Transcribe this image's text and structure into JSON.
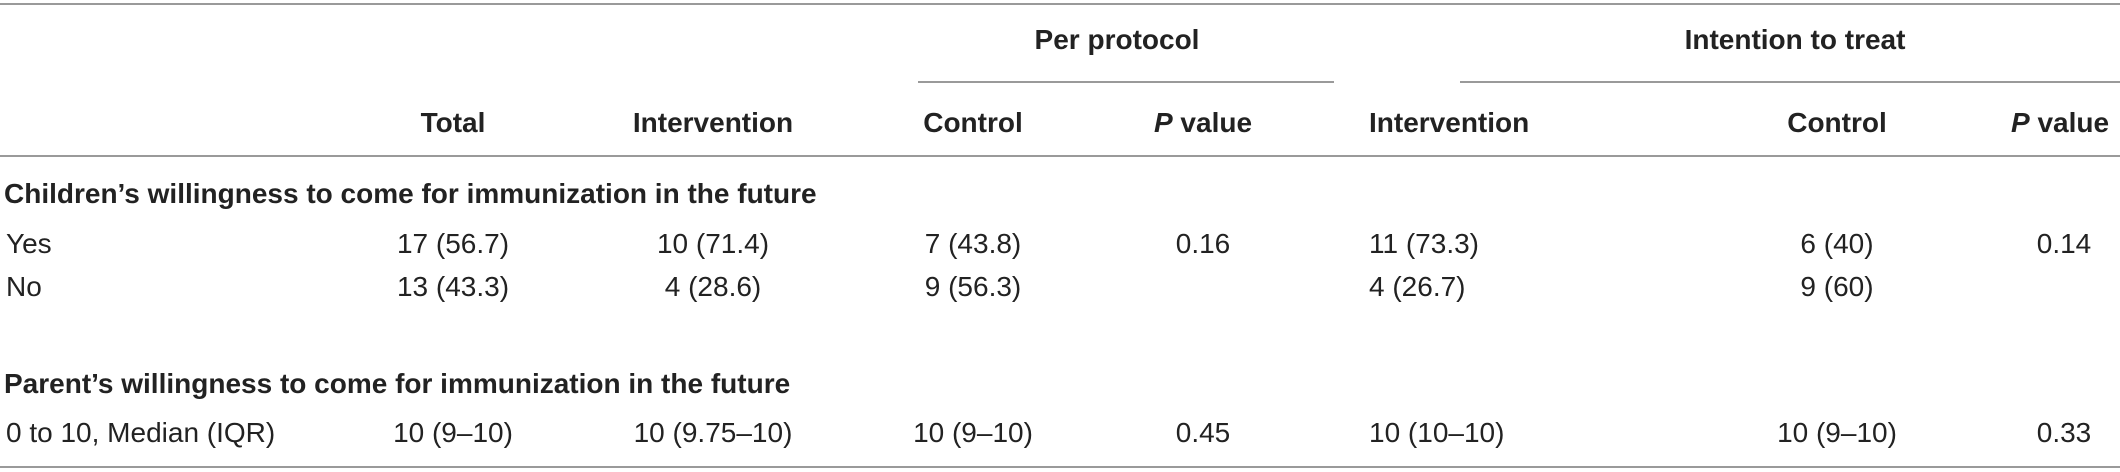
{
  "groups": {
    "per_protocol": "Per protocol",
    "intention_to_treat": "Intention to treat"
  },
  "headers": {
    "total": "Total",
    "pp_intervention": "Intervention",
    "pp_control": "Control",
    "pp_p_letter": "P",
    "pp_p_suffix": " value",
    "itt_intervention": "Intervention",
    "itt_control": "Control",
    "itt_p_letter": "P",
    "itt_p_suffix": " value"
  },
  "sections": [
    {
      "title": "Children’s willingness to come for immunization in the future",
      "rows": [
        {
          "label": "Yes",
          "total": "17 (56.7)",
          "pp_intervention": "10 (71.4)",
          "pp_control": "7 (43.8)",
          "pp_p": "0.16",
          "itt_intervention": "11 (73.3)",
          "itt_control": "6 (40)",
          "itt_p": "0.14"
        },
        {
          "label": "No",
          "total": "13 (43.3)",
          "pp_intervention": "4 (28.6)",
          "pp_control": "9 (56.3)",
          "pp_p": "",
          "itt_intervention": "4 (26.7)",
          "itt_control": "9 (60)",
          "itt_p": ""
        }
      ]
    },
    {
      "title": "Parent’s willingness to come for immunization in the future",
      "rows": [
        {
          "label": "0 to 10, Median (IQR)",
          "total": "10 (9–10)",
          "pp_intervention": "10 (9.75–10)",
          "pp_control": "10 (9–10)",
          "pp_p": "0.45",
          "itt_intervention": "10 (10–10)",
          "itt_control": "10 (9–10)",
          "itt_p": "0.33"
        }
      ]
    }
  ]
}
